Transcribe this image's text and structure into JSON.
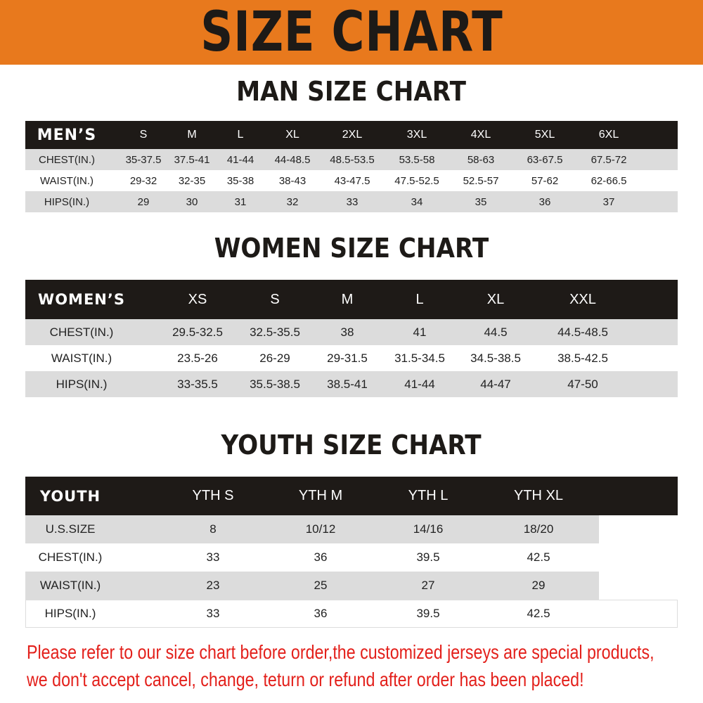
{
  "banner_title": "SIZE CHART",
  "men": {
    "title": "MAN SIZE CHART",
    "header": [
      "MEN’S",
      "S",
      "M",
      "L",
      "XL",
      "2XL",
      "3XL",
      "4XL",
      "5XL",
      "6XL"
    ],
    "rows": [
      [
        "CHEST(IN.)",
        "35-37.5",
        "37.5-41",
        "41-44",
        "44-48.5",
        "48.5-53.5",
        "53.5-58",
        "58-63",
        "63-67.5",
        "67.5-72"
      ],
      [
        "WAIST(IN.)",
        "29-32",
        "32-35",
        "35-38",
        "38-43",
        "43-47.5",
        "47.5-52.5",
        "52.5-57",
        "57-62",
        "62-66.5"
      ],
      [
        "HIPS(IN.)",
        "29",
        "30",
        "31",
        "32",
        "33",
        "34",
        "35",
        "36",
        "37"
      ]
    ]
  },
  "women": {
    "title": "WOMEN SIZE CHART",
    "header": [
      "WOMEN’S",
      "XS",
      "S",
      "M",
      "L",
      "XL",
      "XXL"
    ],
    "rows": [
      [
        "CHEST(IN.)",
        "29.5-32.5",
        "32.5-35.5",
        "38",
        "41",
        "44.5",
        "44.5-48.5"
      ],
      [
        "WAIST(IN.)",
        "23.5-26",
        "26-29",
        "29-31.5",
        "31.5-34.5",
        "34.5-38.5",
        "38.5-42.5"
      ],
      [
        "HIPS(IN.)",
        "33-35.5",
        "35.5-38.5",
        "38.5-41",
        "41-44",
        "44-47",
        "47-50"
      ]
    ]
  },
  "youth": {
    "title": "YOUTH SIZE CHART",
    "header": [
      "YOUTH",
      "YTH S",
      "YTH M",
      "YTH L",
      "YTH XL"
    ],
    "rows": [
      [
        "U.S.SIZE",
        "8",
        "10/12",
        "14/16",
        "18/20"
      ],
      [
        "CHEST(IN.)",
        "33",
        "36",
        "39.5",
        "42.5"
      ],
      [
        "WAIST(IN.)",
        "23",
        "25",
        "27",
        "29"
      ],
      [
        "HIPS(IN.)",
        "33",
        "36",
        "39.5",
        "42.5"
      ]
    ]
  },
  "notice": [
    "Please refer to our size chart before order,the customized jerseys are special products,",
    "we don't accept cancel, change, teturn or refund after order has been placed!"
  ],
  "colors": {
    "banner": "#e8791d",
    "header": "#1e1a17",
    "stripe": "#dcdcdc",
    "notice": "#e3201b"
  }
}
